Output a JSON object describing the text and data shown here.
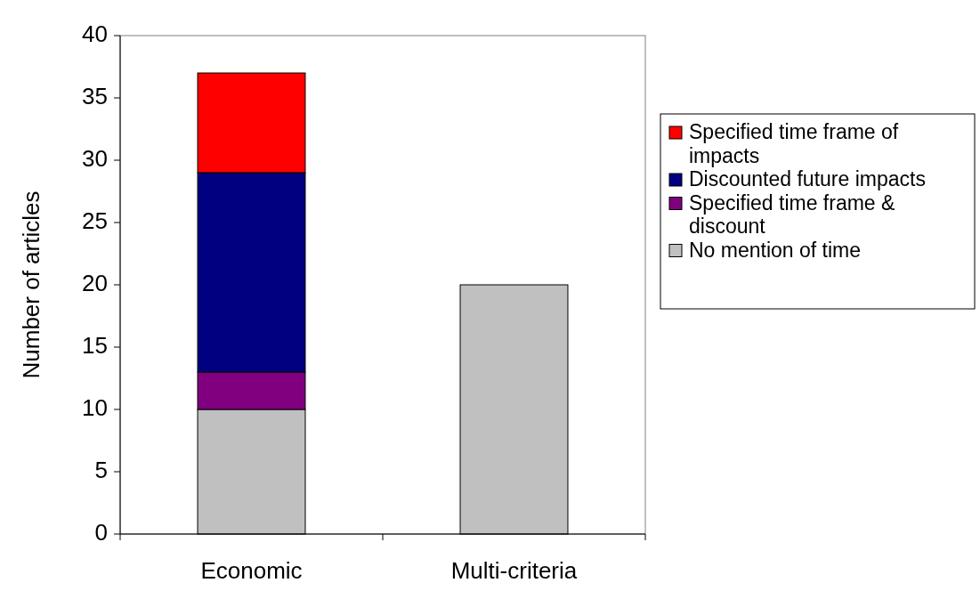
{
  "chart_data": {
    "type": "bar",
    "stacked": true,
    "ylabel": "Number of articles",
    "categories": [
      "Economic",
      "Multi-criteria"
    ],
    "series": [
      {
        "name": "No mention of time",
        "color": "#c0c0c0",
        "values": [
          10,
          20
        ]
      },
      {
        "name": "Specified time frame & discount",
        "color": "#800080",
        "values": [
          3,
          0
        ]
      },
      {
        "name": "Discounted future impacts",
        "color": "#000080",
        "values": [
          16,
          0
        ]
      },
      {
        "name": "Specified time frame of impacts",
        "color": "#ff0000",
        "values": [
          8,
          0
        ]
      }
    ],
    "ylim": [
      0,
      40
    ],
    "yticks": [
      0,
      5,
      10,
      15,
      20,
      25,
      30,
      35,
      40
    ],
    "grid": false,
    "legend": "right"
  }
}
